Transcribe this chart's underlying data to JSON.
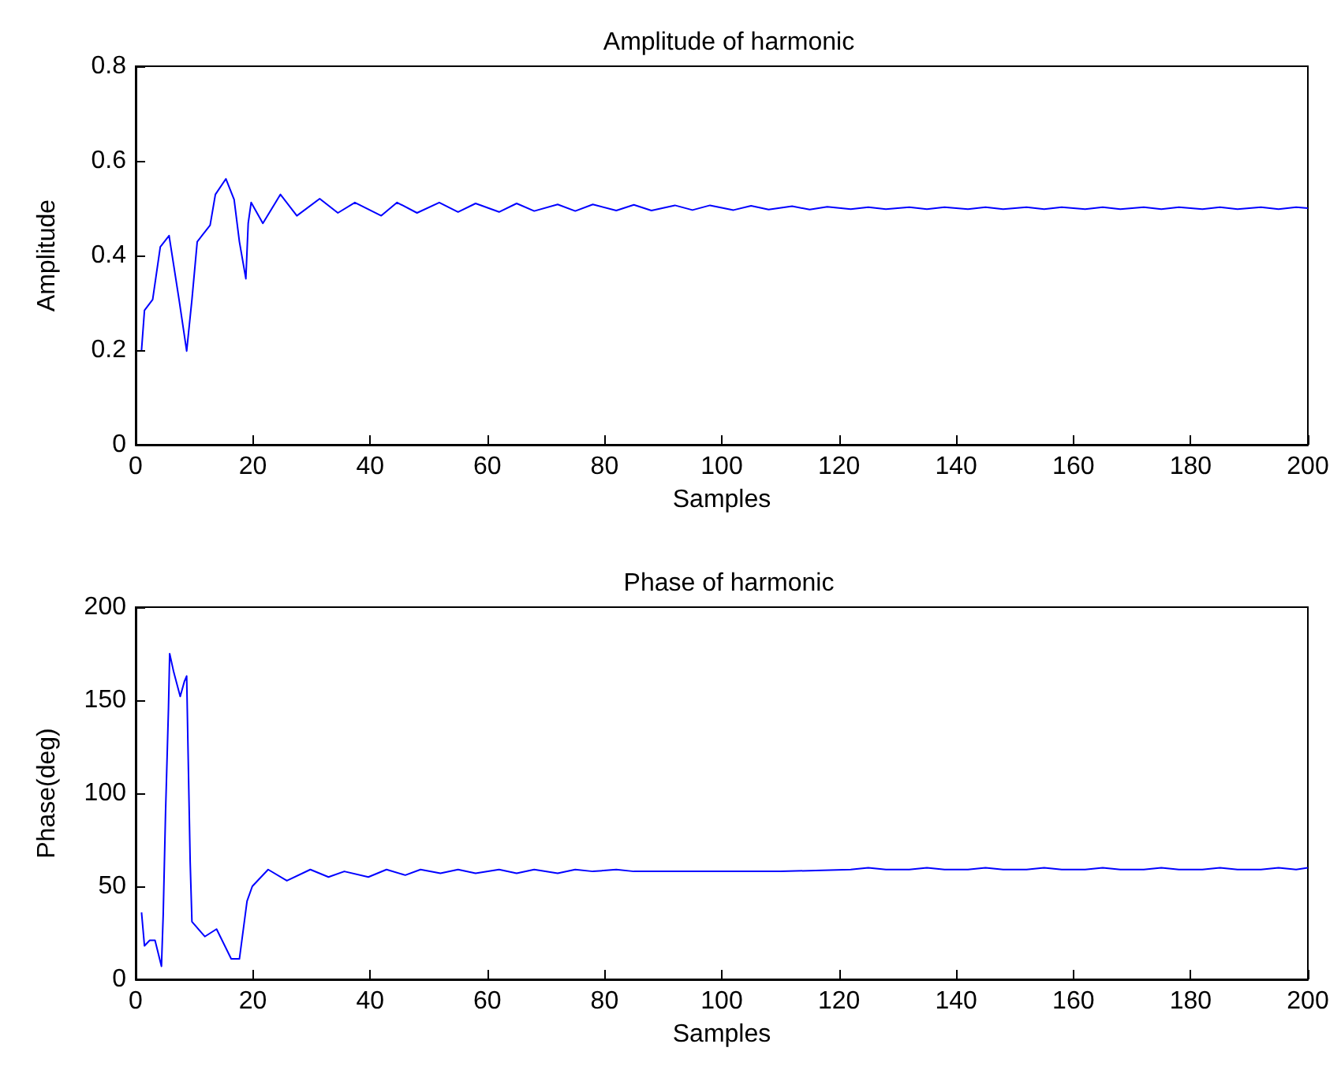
{
  "chart_data": [
    {
      "type": "line",
      "title": "Amplitude of harmonic",
      "xlabel": "Samples",
      "ylabel": "Amplitude",
      "xlim": [
        0,
        200
      ],
      "xticks": [
        0,
        20,
        40,
        60,
        80,
        100,
        120,
        140,
        160,
        180,
        200
      ],
      "ylim": [
        0,
        0.8
      ],
      "yticks": [
        0,
        0.2,
        0.4,
        0.6,
        0.8
      ],
      "marker": "none",
      "line_style": "solid",
      "series": [
        {
          "color": "#0000ff",
          "x": [
            1,
            1.5,
            2.9,
            4.2,
            5.7,
            7.4,
            8.7,
            9.6,
            10.5,
            12.7,
            13.6,
            15.4,
            16.8,
            17.7,
            18.8,
            19.2,
            19.7,
            21.7,
            24.7,
            27.5,
            31.4,
            34.5,
            37.4,
            41.9,
            44.6,
            48,
            51.8,
            55,
            58,
            62,
            65,
            68,
            72,
            75,
            78,
            82,
            85,
            88,
            92,
            95,
            98,
            102,
            105,
            108,
            112,
            115,
            118,
            122,
            125,
            128,
            132,
            135,
            138,
            142,
            145,
            148,
            152,
            155,
            158,
            162,
            165,
            168,
            172,
            175,
            178,
            182,
            185,
            188,
            192,
            195,
            198,
            200
          ],
          "values": [
            0.2,
            0.284,
            0.307,
            0.418,
            0.442,
            0.307,
            0.198,
            0.307,
            0.429,
            0.464,
            0.529,
            0.562,
            0.518,
            0.429,
            0.351,
            0.468,
            0.512,
            0.468,
            0.529,
            0.484,
            0.52,
            0.49,
            0.512,
            0.484,
            0.512,
            0.49,
            0.512,
            0.492,
            0.51,
            0.492,
            0.51,
            0.494,
            0.508,
            0.494,
            0.508,
            0.495,
            0.507,
            0.495,
            0.506,
            0.496,
            0.506,
            0.496,
            0.505,
            0.497,
            0.504,
            0.497,
            0.503,
            0.498,
            0.502,
            0.498,
            0.502,
            0.498,
            0.502,
            0.498,
            0.502,
            0.498,
            0.502,
            0.498,
            0.502,
            0.498,
            0.502,
            0.498,
            0.502,
            0.498,
            0.502,
            0.498,
            0.502,
            0.498,
            0.502,
            0.498,
            0.502,
            0.5
          ]
        }
      ]
    },
    {
      "type": "line",
      "title": "Phase of harmonic",
      "xlabel": "Samples",
      "ylabel": "Phase(deg)",
      "xlim": [
        0,
        200
      ],
      "xticks": [
        0,
        20,
        40,
        60,
        80,
        100,
        120,
        140,
        160,
        180,
        200
      ],
      "ylim": [
        0,
        200
      ],
      "yticks": [
        0,
        50,
        100,
        150,
        200
      ],
      "marker": "none",
      "line_style": "solid",
      "series": [
        {
          "color": "#0000ff",
          "x": [
            1,
            1.5,
            2.4,
            3.3,
            4.4,
            4.7,
            5.1,
            5.6,
            5.8,
            6.5,
            7.6,
            8.3,
            8.7,
            8.9,
            9.3,
            9.6,
            11.8,
            13.8,
            16.3,
            17.7,
            19,
            19.9,
            22.6,
            25.8,
            29.8,
            32.9,
            35.6,
            39.7,
            42.8,
            46,
            48.6,
            52,
            55,
            58,
            62,
            65,
            68,
            72,
            75,
            78,
            82,
            85,
            100,
            110,
            122,
            125,
            128,
            132,
            135,
            138,
            142,
            145,
            148,
            152,
            155,
            158,
            162,
            165,
            168,
            172,
            175,
            178,
            182,
            185,
            188,
            192,
            195,
            198,
            200
          ],
          "values": [
            36,
            18,
            21,
            21,
            7,
            35,
            90,
            146,
            175,
            165,
            152,
            160,
            163,
            129,
            63,
            31,
            23,
            27,
            11,
            11,
            42,
            50,
            59,
            53,
            59,
            55,
            58,
            55,
            59,
            56,
            59,
            57,
            59,
            57,
            59,
            57,
            59,
            57,
            59,
            58,
            59,
            58,
            58,
            58,
            59,
            60,
            59,
            59,
            60,
            59,
            59,
            60,
            59,
            59,
            60,
            59,
            59,
            60,
            59,
            59,
            60,
            59,
            59,
            60,
            59,
            59,
            60,
            59,
            60
          ]
        }
      ]
    }
  ]
}
